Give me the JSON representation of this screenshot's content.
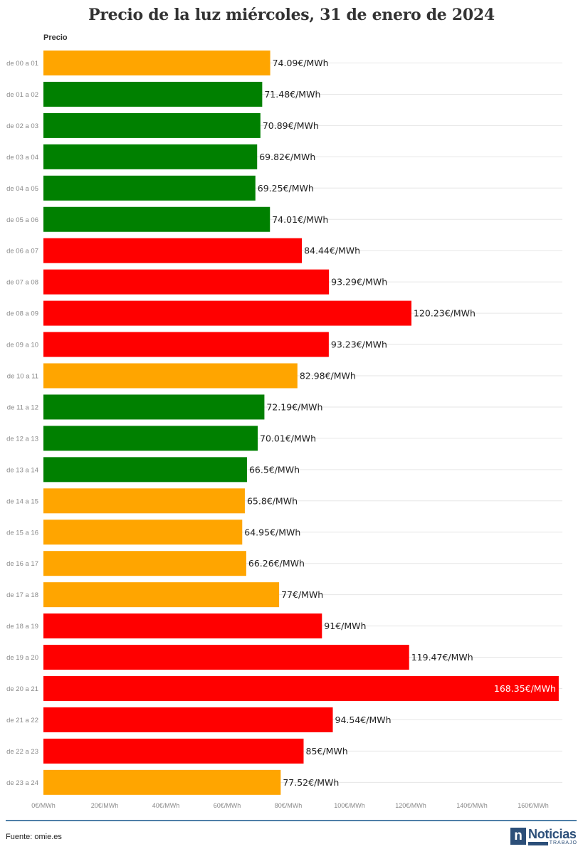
{
  "chart_data": {
    "type": "bar",
    "orientation": "horizontal",
    "title": "Precio de la luz miércoles, 31 de enero de 2024",
    "series_label": "Precio",
    "categories": [
      "de 00 a 01",
      "de 01 a 02",
      "de 02 a 03",
      "de 03 a 04",
      "de 04 a 05",
      "de 05 a 06",
      "de 06 a 07",
      "de 07 a 08",
      "de 08 a 09",
      "de 09 a 10",
      "de 10 a 11",
      "de 11 a 12",
      "de 12 a 13",
      "de 13 a 14",
      "de 14 a 15",
      "de 15 a 16",
      "de 16 a 17",
      "de 17 a 18",
      "de 18 a 19",
      "de 19 a 20",
      "de 20 a 21",
      "de 21 a 22",
      "de 22 a 23",
      "de 23 a 24"
    ],
    "values": [
      74.09,
      71.48,
      70.89,
      69.82,
      69.25,
      74.01,
      84.44,
      93.29,
      120.23,
      93.23,
      82.98,
      72.19,
      70.01,
      66.5,
      65.8,
      64.95,
      66.26,
      77,
      91,
      119.47,
      168.35,
      94.54,
      85,
      77.52
    ],
    "labels": [
      "74.09€/MWh",
      "71.48€/MWh",
      "70.89€/MWh",
      "69.82€/MWh",
      "69.25€/MWh",
      "74.01€/MWh",
      "84.44€/MWh",
      "93.29€/MWh",
      "120.23€/MWh",
      "93.23€/MWh",
      "82.98€/MWh",
      "72.19€/MWh",
      "70.01€/MWh",
      "66.5€/MWh",
      "65.8€/MWh",
      "64.95€/MWh",
      "66.26€/MWh",
      "77€/MWh",
      "91€/MWh",
      "119.47€/MWh",
      "168.35€/MWh",
      "94.54€/MWh",
      "85€/MWh",
      "77.52€/MWh"
    ],
    "bar_colors": [
      "#ffa500",
      "#008000",
      "#008000",
      "#008000",
      "#008000",
      "#008000",
      "#ff0000",
      "#ff0000",
      "#ff0000",
      "#ff0000",
      "#ffa500",
      "#008000",
      "#008000",
      "#008000",
      "#ffa500",
      "#ffa500",
      "#ffa500",
      "#ffa500",
      "#ff0000",
      "#ff0000",
      "#ff0000",
      "#ff0000",
      "#ff0000",
      "#ffa500"
    ],
    "xlim": [
      0,
      170
    ],
    "x_ticks": [
      0,
      20,
      40,
      60,
      80,
      100,
      120,
      140,
      160
    ],
    "x_tick_labels": [
      "0€/MWh",
      "20€/MWh",
      "40€/MWh",
      "60€/MWh",
      "80€/MWh",
      "100€/MWh",
      "120€/MWh",
      "140€/MWh",
      "160€/MWh"
    ],
    "grid": "horizontal",
    "legend": "none"
  },
  "footer": {
    "source": "Fuente: omie.es",
    "logo_mark": "n",
    "logo_word": "Noticias",
    "logo_sub": "TRABAJO"
  }
}
